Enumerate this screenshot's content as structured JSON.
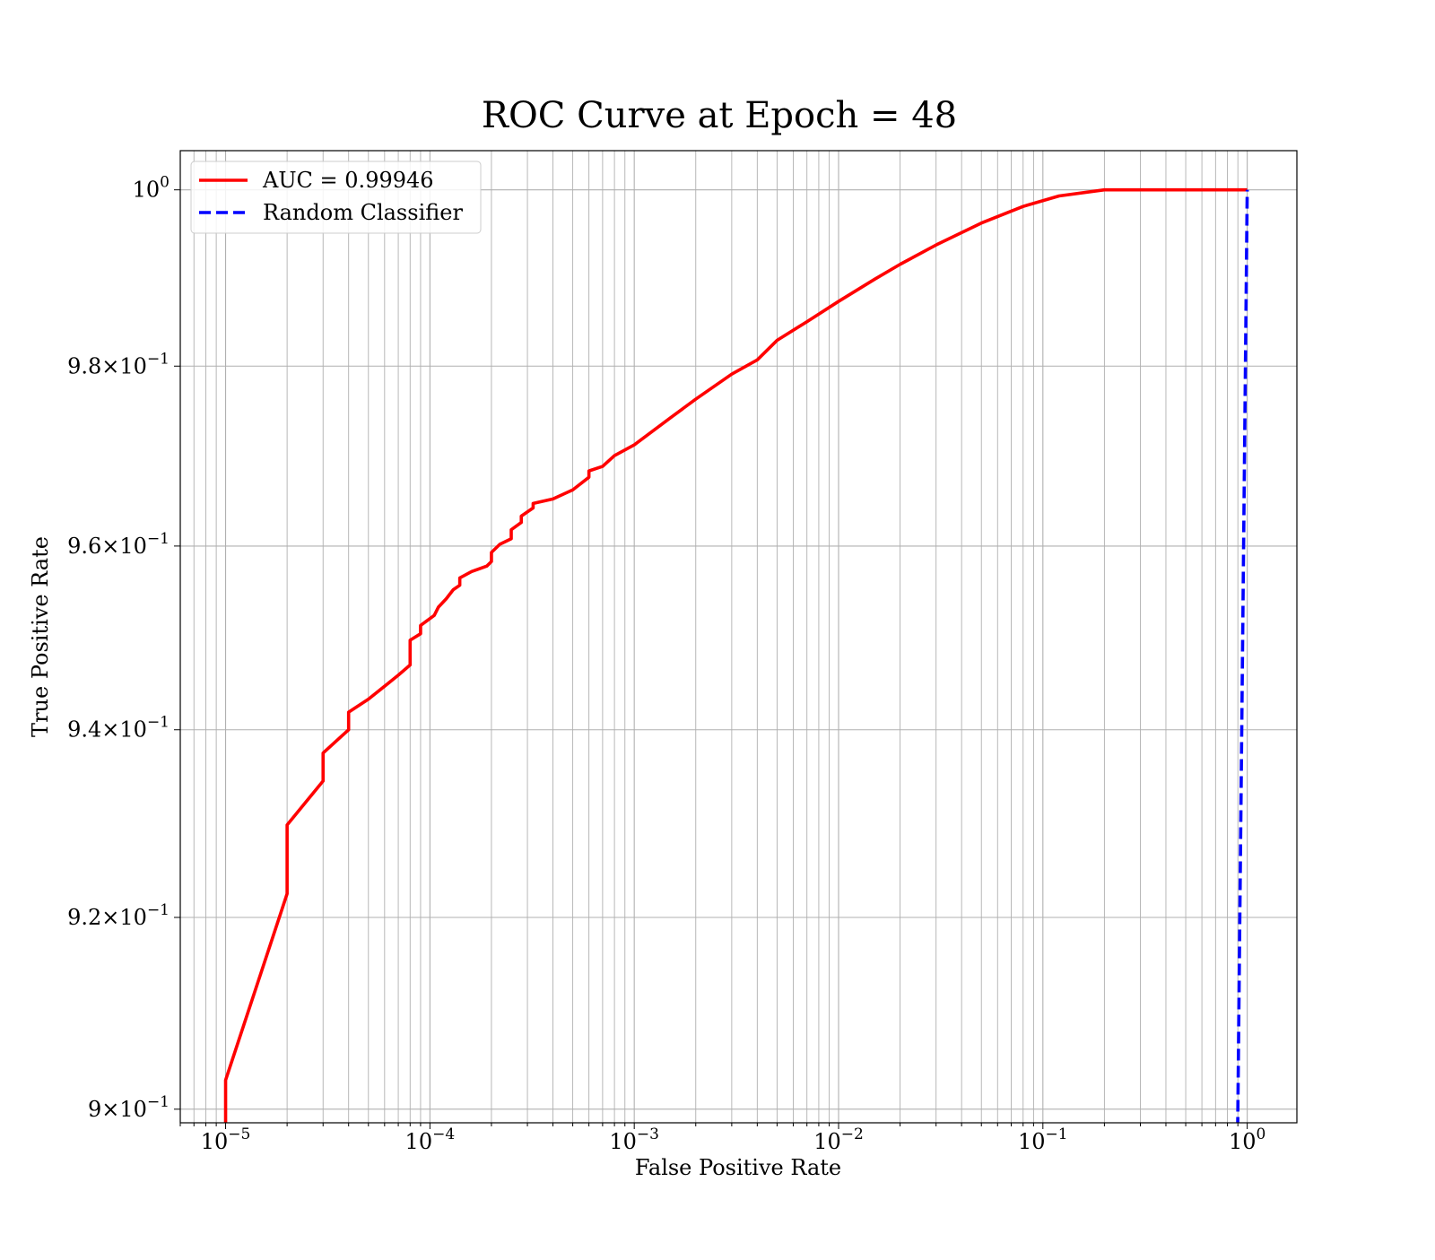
{
  "chart_data": {
    "type": "line",
    "title": "ROC Curve at Epoch = 48",
    "xlabel": "False Positive Rate",
    "ylabel": "True Positive Rate",
    "x_scale": "log",
    "y_scale": "log",
    "xlim": [
      6e-06,
      1.75
    ],
    "ylim": [
      0.8986,
      1.0045
    ],
    "grid": true,
    "legend_position": "top-left",
    "x_ticks": [
      {
        "value": 1e-05,
        "mantissa": "",
        "base": "10",
        "exp": "−5"
      },
      {
        "value": 0.0001,
        "mantissa": "",
        "base": "10",
        "exp": "−4"
      },
      {
        "value": 0.001,
        "mantissa": "",
        "base": "10",
        "exp": "−3"
      },
      {
        "value": 0.01,
        "mantissa": "",
        "base": "10",
        "exp": "−2"
      },
      {
        "value": 0.1,
        "mantissa": "",
        "base": "10",
        "exp": "−1"
      },
      {
        "value": 1,
        "mantissa": "",
        "base": "10",
        "exp": "0"
      }
    ],
    "y_ticks": [
      {
        "value": 0.9,
        "mantissa": "9×",
        "base": "10",
        "exp": "−1"
      },
      {
        "value": 0.92,
        "mantissa": "9.2×",
        "base": "10",
        "exp": "−1"
      },
      {
        "value": 0.94,
        "mantissa": "9.4×",
        "base": "10",
        "exp": "−1"
      },
      {
        "value": 0.96,
        "mantissa": "9.6×",
        "base": "10",
        "exp": "−1"
      },
      {
        "value": 0.98,
        "mantissa": "9.8×",
        "base": "10",
        "exp": "−1"
      },
      {
        "value": 1.0,
        "mantissa": "",
        "base": "10",
        "exp": "0"
      }
    ],
    "series": [
      {
        "name": "AUC = 0.99946",
        "color": "#ff0000",
        "style": "solid",
        "points": [
          [
            1e-05,
            0.898
          ],
          [
            1e-05,
            0.903
          ],
          [
            2e-05,
            0.9225
          ],
          [
            2e-05,
            0.9298
          ],
          [
            3e-05,
            0.9345
          ],
          [
            3e-05,
            0.9375
          ],
          [
            4e-05,
            0.94
          ],
          [
            4e-05,
            0.9419
          ],
          [
            5e-05,
            0.9433
          ],
          [
            6e-05,
            0.9447
          ],
          [
            7e-05,
            0.9459
          ],
          [
            8e-05,
            0.947
          ],
          [
            8e-05,
            0.9497
          ],
          [
            9e-05,
            0.9504
          ],
          [
            9e-05,
            0.9513
          ],
          [
            0.000105,
            0.9524
          ],
          [
            0.00011,
            0.9533
          ],
          [
            0.00012,
            0.9542
          ],
          [
            0.00013,
            0.9552
          ],
          [
            0.00014,
            0.9557
          ],
          [
            0.00014,
            0.9565
          ],
          [
            0.00016,
            0.9572
          ],
          [
            0.00019,
            0.9578
          ],
          [
            0.0002,
            0.9583
          ],
          [
            0.0002,
            0.9593
          ],
          [
            0.00022,
            0.9602
          ],
          [
            0.00025,
            0.9608
          ],
          [
            0.00025,
            0.9618
          ],
          [
            0.00028,
            0.9626
          ],
          [
            0.00028,
            0.9633
          ],
          [
            0.00032,
            0.9642
          ],
          [
            0.00032,
            0.9647
          ],
          [
            0.0004,
            0.9652
          ],
          [
            0.0005,
            0.9662
          ],
          [
            0.0006,
            0.9676
          ],
          [
            0.0006,
            0.9683
          ],
          [
            0.0007,
            0.9688
          ],
          [
            0.0008,
            0.97
          ],
          [
            0.001,
            0.9712
          ],
          [
            0.0015,
            0.9742
          ],
          [
            0.002,
            0.9763
          ],
          [
            0.003,
            0.9791
          ],
          [
            0.004,
            0.9807
          ],
          [
            0.005,
            0.9829
          ],
          [
            0.007,
            0.985
          ],
          [
            0.01,
            0.9873
          ],
          [
            0.015,
            0.9898
          ],
          [
            0.02,
            0.9915
          ],
          [
            0.03,
            0.9937
          ],
          [
            0.05,
            0.9962
          ],
          [
            0.08,
            0.9981
          ],
          [
            0.12,
            0.9993
          ],
          [
            0.2,
            1.0
          ],
          [
            1.0,
            1.0
          ]
        ]
      },
      {
        "name": "Random Classifier",
        "color": "#0000ff",
        "style": "dashed",
        "points": [
          [
            0.898,
            0.898
          ],
          [
            1.0,
            1.0
          ]
        ]
      }
    ]
  }
}
